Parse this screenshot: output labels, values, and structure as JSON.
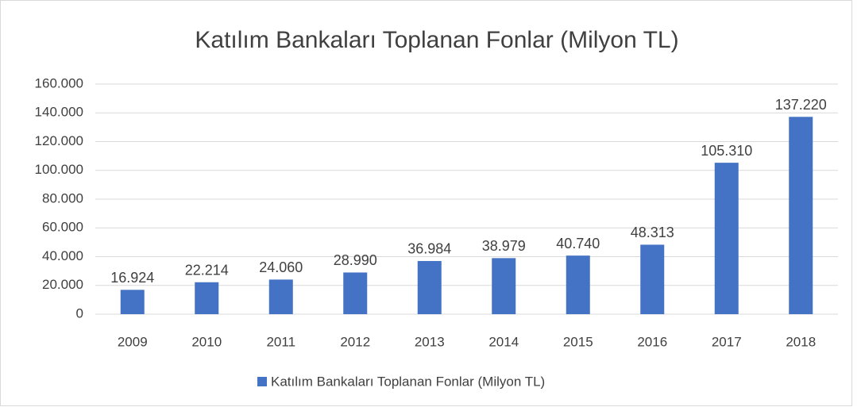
{
  "chart_data": {
    "type": "bar",
    "title": "Katılım Bankaları Toplanan Fonlar (Milyon TL)",
    "categories": [
      "2009",
      "2010",
      "2011",
      "2012",
      "2013",
      "2014",
      "2015",
      "2016",
      "2017",
      "2018"
    ],
    "series": [
      {
        "name": "Katılım Bankaları Toplanan Fonlar (Milyon TL)",
        "color": "#4472c4",
        "values": [
          16924,
          22214,
          24060,
          28990,
          36984,
          38979,
          40740,
          48313,
          105310,
          137220
        ],
        "value_labels": [
          "16.924",
          "22.214",
          "24.060",
          "28.990",
          "36.984",
          "38.979",
          "40.740",
          "48.313",
          "105.310",
          "137.220"
        ]
      }
    ],
    "ylim": [
      0,
      160000
    ],
    "yticks": [
      0,
      {
        "value": 20000,
        "label": "20.000"
      },
      {
        "value": 40000,
        "label": "40.000"
      },
      {
        "value": 60000,
        "label": "60.000"
      },
      {
        "value": 80000,
        "label": "80.000"
      },
      {
        "value": 100000,
        "label": "100.000"
      },
      {
        "value": 120000,
        "label": "120.000"
      },
      {
        "value": 140000,
        "label": "140.000"
      },
      {
        "value": 160000,
        "label": "160.000"
      }
    ],
    "grid": true,
    "legend": "bottom"
  }
}
